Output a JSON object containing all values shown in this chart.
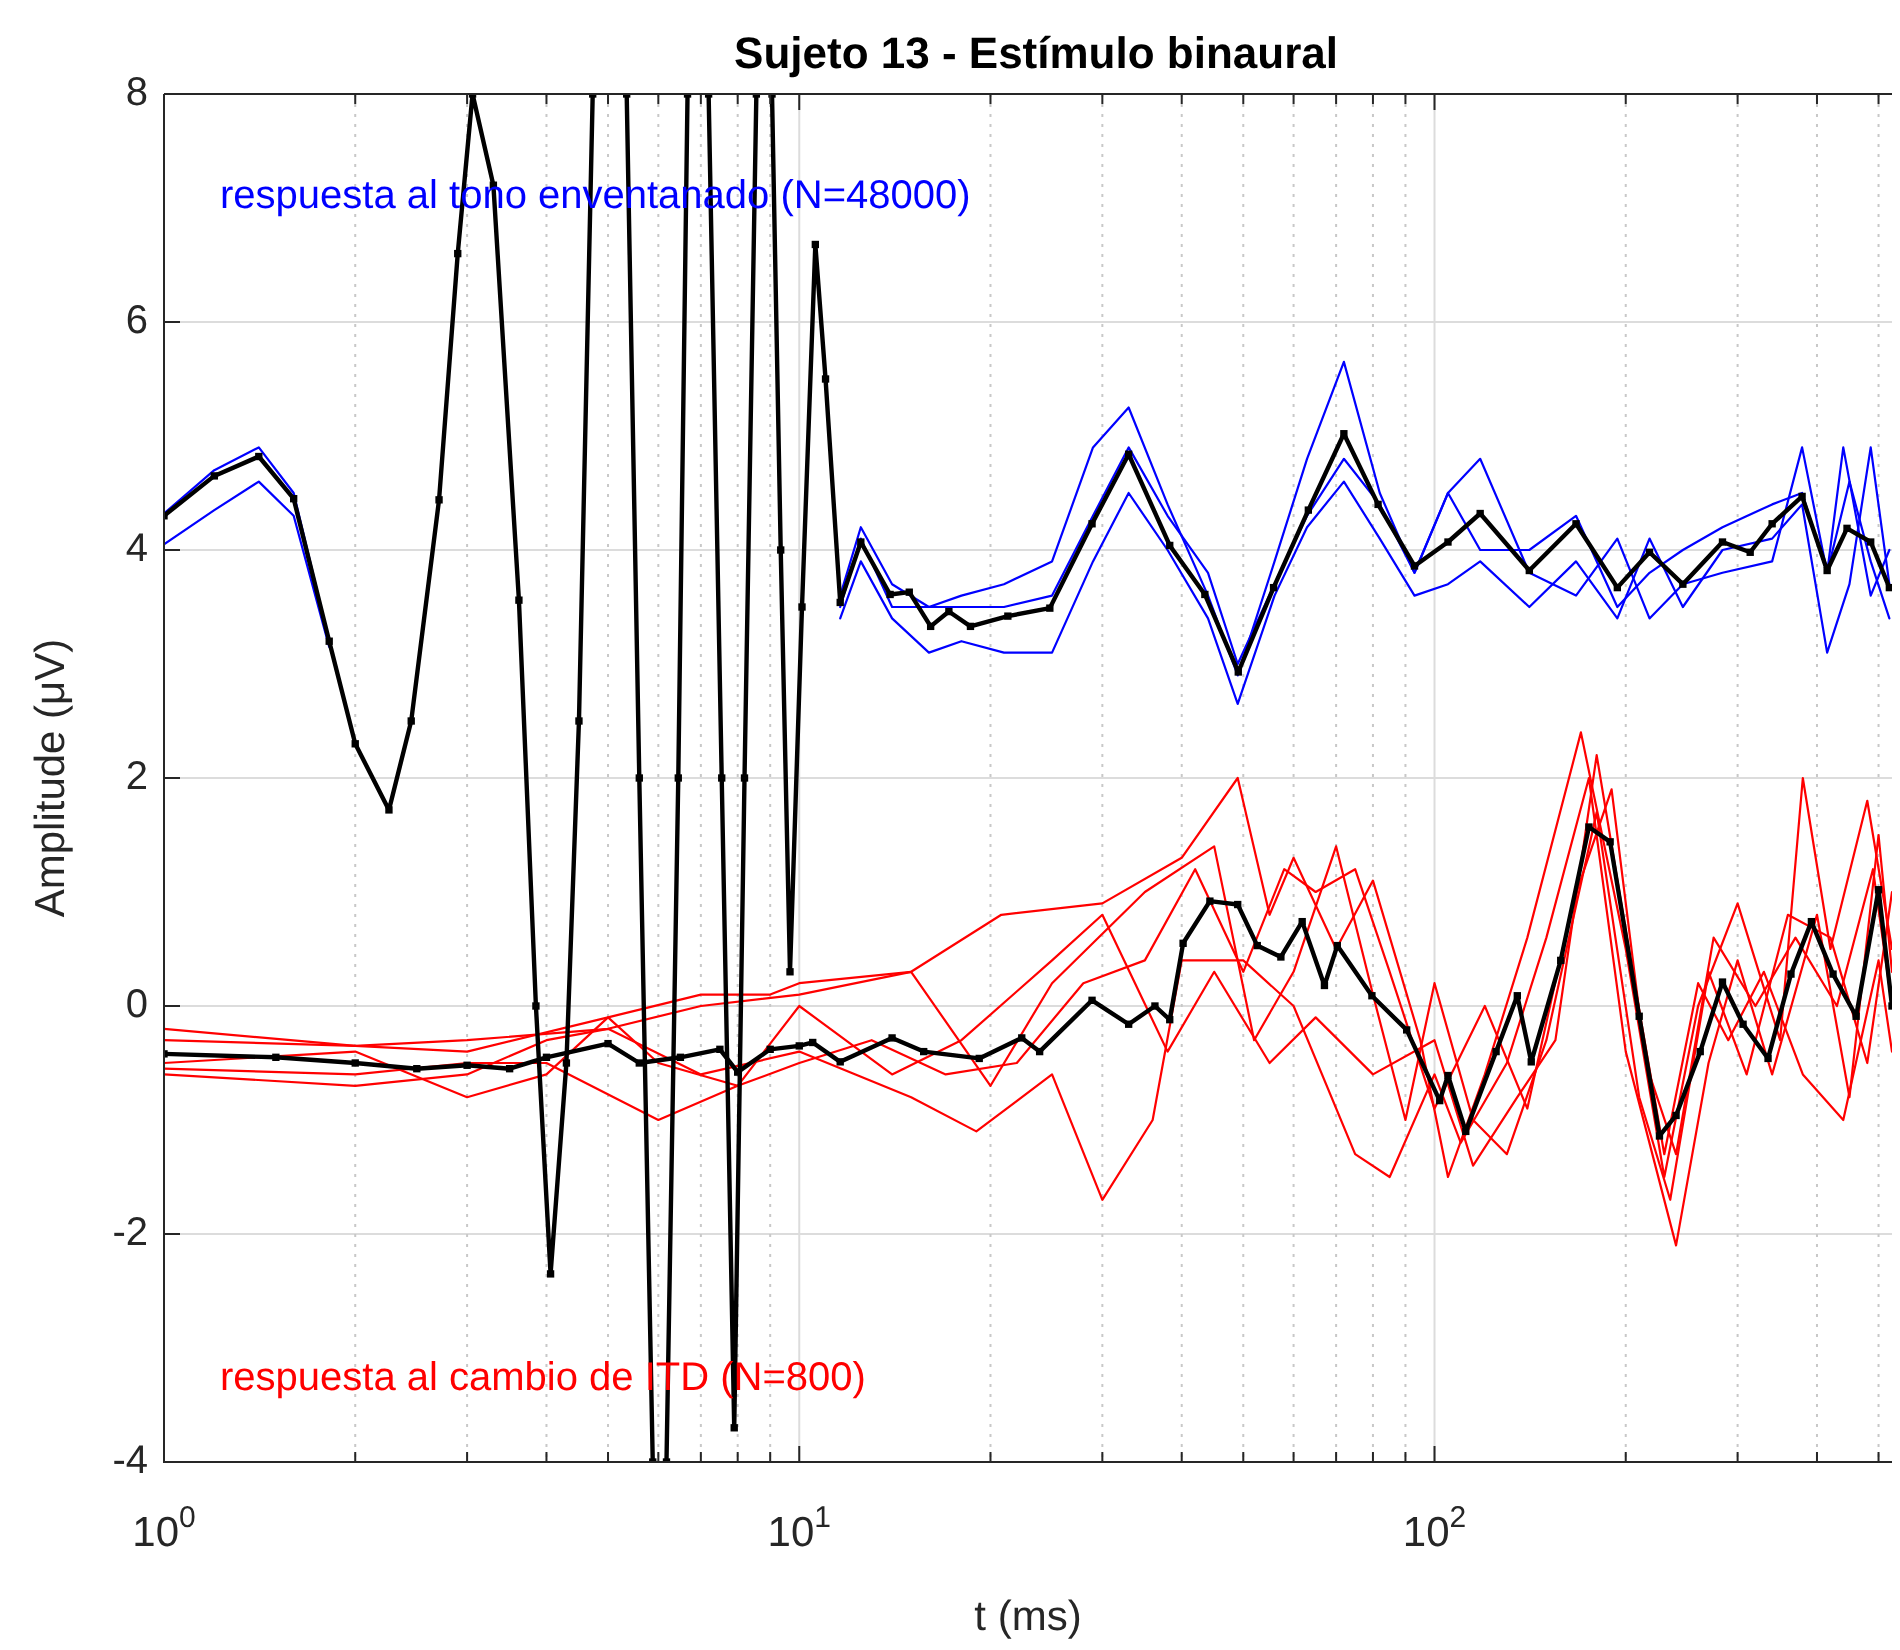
{
  "chart_data": {
    "type": "line",
    "title": "Sujeto 13 - Estímulo binaural",
    "xlabel": "t (ms)",
    "ylabel": "Amplitude (μV)",
    "log": "x",
    "grid": true,
    "xlim": [
      1,
      525
    ],
    "ylim": [
      -4,
      8
    ],
    "xticks": [
      {
        "value": 1,
        "label": "10$^{0}$"
      },
      {
        "value": 2,
        "label": null
      },
      {
        "value": 3,
        "label": null
      },
      {
        "value": 4,
        "label": null
      },
      {
        "value": 5,
        "label": null
      },
      {
        "value": 6,
        "label": null
      },
      {
        "value": 7,
        "label": null
      },
      {
        "value": 8,
        "label": null
      },
      {
        "value": 9,
        "label": null
      },
      {
        "value": 10,
        "label": "10$^{1}$"
      },
      {
        "value": 20,
        "label": null
      },
      {
        "value": 30,
        "label": null
      },
      {
        "value": 40,
        "label": null
      },
      {
        "value": 50,
        "label": null
      },
      {
        "value": 60,
        "label": null
      },
      {
        "value": 70,
        "label": null
      },
      {
        "value": 80,
        "label": null
      },
      {
        "value": 90,
        "label": null
      },
      {
        "value": 100,
        "label": "10$^{2}$"
      },
      {
        "value": 200,
        "label": null
      },
      {
        "value": 300,
        "label": null
      },
      {
        "value": 400,
        "label": null
      },
      {
        "value": 500,
        "label": null
      }
    ],
    "yticks": [
      -4,
      -2,
      0,
      2,
      4,
      6,
      8
    ],
    "series": [
      {
        "name": "respuesta al tono enventanado (N=48000)",
        "color": "#0000ff",
        "x": [
          1,
          1.2,
          1.41,
          1.6,
          1.82,
          2.0,
          11.6,
          12.5,
          14,
          16,
          18,
          21,
          25,
          29,
          33,
          38,
          44,
          49,
          56,
          63,
          72,
          82,
          93,
          105,
          118,
          141,
          167,
          194,
          218,
          246,
          284,
          340,
          379,
          415,
          440,
          486,
          520
        ],
        "values": [
          4.32,
          4.7,
          4.9,
          4.5,
          3.2,
          null,
          3.6,
          4.2,
          3.7,
          3.5,
          3.6,
          3.7,
          3.9,
          4.9,
          5.25,
          4.4,
          3.6,
          2.9,
          3.9,
          4.8,
          5.65,
          4.5,
          3.8,
          4.5,
          4.8,
          3.8,
          3.6,
          4.1,
          3.4,
          3.7,
          3.8,
          3.9,
          4.9,
          3.8,
          4.9,
          3.6,
          4
        ]
      },
      {
        "color": "#0000ff",
        "x": [
          1,
          1.2,
          1.41,
          1.6,
          1.82,
          2.0,
          11.6,
          12.5,
          14,
          16,
          18,
          21,
          25,
          29,
          33,
          38,
          44,
          49,
          56,
          63,
          72,
          82,
          93,
          105,
          118,
          141,
          167,
          194,
          218,
          246,
          284,
          340,
          379,
          415,
          450,
          486,
          520
        ],
        "values": [
          4.05,
          4.35,
          4.6,
          4.3,
          3.15,
          null,
          3.4,
          3.9,
          3.4,
          3.1,
          3.2,
          3.1,
          3.1,
          3.9,
          4.5,
          4.0,
          3.4,
          2.65,
          3.6,
          4.2,
          4.6,
          4.1,
          3.6,
          3.7,
          3.9,
          3.5,
          3.9,
          3.4,
          4.1,
          3.5,
          4.0,
          4.1,
          4.4,
          3.1,
          3.7,
          4.9,
          3.7
        ]
      },
      {
        "color": "#0000ff",
        "x": [
          11.6,
          12.5,
          14,
          16,
          18,
          21,
          25,
          29,
          33,
          38,
          44,
          49,
          56,
          63,
          72,
          82,
          93,
          105,
          118,
          141,
          167,
          194,
          218,
          246,
          284,
          340,
          379,
          415,
          450,
          486,
          520
        ],
        "values": [
          3.5,
          4.1,
          3.5,
          3.5,
          3.5,
          3.5,
          3.6,
          4.3,
          4.9,
          4.3,
          3.8,
          3.0,
          3.7,
          4.3,
          4.8,
          4.4,
          3.8,
          4.5,
          4.0,
          4.0,
          4.3,
          3.5,
          3.8,
          4.0,
          4.2,
          4.4,
          4.5,
          3.8,
          4.6,
          3.9,
          3.4
        ]
      },
      {
        "name": "respuesta al cambio de ITD (N=800)",
        "color": "#ff0000",
        "x": [
          1,
          2,
          3,
          5,
          7,
          10,
          15,
          20.8,
          30,
          40,
          49,
          55,
          60,
          70,
          80,
          95,
          105,
          120,
          140,
          170,
          200,
          230,
          260,
          300,
          350,
          380,
          420,
          480,
          525
        ],
        "values": [
          -0.3,
          -0.35,
          -0.3,
          -0.2,
          0,
          0.1,
          0.3,
          0.8,
          0.9,
          1.3,
          2.0,
          0.8,
          1.3,
          0.5,
          1.1,
          -0.3,
          -1.5,
          -0.6,
          0.6,
          2.4,
          0.5,
          -1.5,
          0,
          0.9,
          -0.3,
          2.0,
          0.5,
          1.8,
          0.5
        ]
      },
      {
        "color": "#ff0000",
        "x": [
          1,
          2,
          3,
          4,
          5,
          7,
          10,
          15,
          19,
          25,
          30,
          36,
          40,
          50,
          60,
          75,
          85,
          100,
          110,
          130,
          150,
          175,
          200,
          240,
          270,
          300,
          340,
          400,
          450,
          500,
          525
        ],
        "values": [
          -0.6,
          -0.7,
          -0.6,
          -0.3,
          -0.2,
          -0.6,
          -0.4,
          -0.8,
          -1.1,
          -0.6,
          -1.7,
          -1.0,
          0.4,
          0.4,
          0,
          -1.3,
          -1.5,
          -0.6,
          -1.2,
          -0.5,
          0.6,
          2.0,
          -0.4,
          -2.1,
          -0.5,
          0.4,
          -0.6,
          0.8,
          -0.8,
          1.5,
          0.3
        ]
      },
      {
        "color": "#ff0000",
        "x": [
          1,
          2,
          3,
          5,
          7,
          9,
          10,
          15,
          20,
          25,
          35,
          45,
          52,
          60,
          70,
          80,
          90,
          100,
          115,
          130,
          150,
          180,
          210,
          235,
          270,
          310,
          360,
          420,
          480,
          525
        ],
        "values": [
          -0.2,
          -0.35,
          -0.4,
          -0.1,
          0.1,
          0.1,
          0.2,
          0.3,
          -0.7,
          0.2,
          1.0,
          1.4,
          -0.3,
          0.3,
          1.4,
          0.1,
          -1.0,
          0.2,
          -1.0,
          -1.3,
          -0.3,
          1.7,
          -0.8,
          -1.7,
          0.3,
          -0.6,
          0.8,
          0.6,
          -0.5,
          1.0
        ]
      },
      {
        "color": "#ff0000",
        "x": [
          1,
          2,
          3,
          4,
          5,
          6,
          8,
          10,
          13,
          17,
          22,
          28,
          35,
          42,
          50,
          58,
          65,
          75,
          85,
          100,
          120,
          140,
          165,
          190,
          215,
          240,
          275,
          320,
          370,
          430,
          490,
          525
        ],
        "values": [
          -0.5,
          -0.4,
          -0.8,
          -0.6,
          -0.1,
          -0.5,
          -0.7,
          -0.5,
          -0.3,
          -0.6,
          -0.5,
          0.2,
          0.4,
          1.2,
          0.3,
          1.2,
          1.0,
          1.2,
          0.3,
          -0.9,
          0,
          -0.9,
          0.9,
          1.9,
          -0.5,
          -1.3,
          0.6,
          0,
          0.6,
          0,
          1.2,
          0
        ]
      },
      {
        "color": "#ff0000",
        "x": [
          1,
          2,
          3,
          4,
          6,
          8,
          10,
          14,
          18,
          25,
          30,
          38,
          45,
          55,
          65,
          80,
          100,
          115,
          135,
          155,
          180,
          205,
          230,
          260,
          290,
          330,
          380,
          440,
          500,
          525
        ],
        "values": [
          -0.55,
          -0.6,
          -0.5,
          -0.5,
          -1.0,
          -0.7,
          0,
          -0.6,
          -0.3,
          0.4,
          0.8,
          -0.4,
          0.3,
          -0.5,
          -0.1,
          -0.6,
          -0.3,
          -1.4,
          -0.8,
          -0.3,
          2.2,
          0.3,
          -1.3,
          0.2,
          -0.3,
          0.3,
          -0.6,
          -1.0,
          0.4,
          -0.4
        ]
      },
      {
        "color": "#000000",
        "marker": "square",
        "x": [
          1,
          1.2,
          1.41,
          1.6,
          1.82,
          2.0,
          2.26,
          2.45,
          2.71,
          2.9,
          3.06,
          3.3,
          3.62,
          3.85,
          4.06,
          4.3,
          4.5,
          4.73,
          5.0,
          5.35,
          5.6,
          5.88,
          6.0,
          6.18,
          6.45,
          6.67,
          6.9,
          7.2,
          7.55,
          7.9,
          8.2,
          8.56,
          8.8,
          9.06,
          9.35,
          9.67,
          10.1,
          10.6,
          11.0,
          11.6,
          12.5,
          13.9,
          14.9,
          16.1,
          17.2,
          18.6,
          21.3,
          24.8,
          28.9,
          33,
          38.3,
          43.5,
          49.1,
          55.8,
          63.3,
          72,
          81.5,
          93,
          105,
          118,
          141,
          167,
          194,
          218,
          246,
          284,
          314,
          340,
          379,
          415,
          446,
          486,
          520
        ],
        "values": [
          4.3,
          4.65,
          4.82,
          4.45,
          3.2,
          2.3,
          1.72,
          2.5,
          4.44,
          6.6,
          8,
          7.2,
          3.56,
          0,
          -2.35,
          -0.5,
          2.5,
          8,
          null,
          8,
          2,
          -4,
          null,
          -4,
          2,
          8,
          null,
          8,
          2,
          -3.7,
          2,
          8,
          null,
          8,
          4,
          0.3,
          3.5,
          6.68,
          5.5,
          3.54,
          4.07,
          3.61,
          3.63,
          3.33,
          3.46,
          3.33,
          3.42,
          3.49,
          4.23,
          4.84,
          4.04,
          3.61,
          2.93,
          3.67,
          4.35,
          5.02,
          4.4,
          3.86,
          4.07,
          4.32,
          3.82,
          4.23,
          3.67,
          3.98,
          3.7,
          4.07,
          3.98,
          4.23,
          4.47,
          3.82,
          4.19,
          4.07,
          3.67
        ]
      },
      {
        "color": "#000000",
        "marker": "square",
        "x": [
          1,
          1.5,
          2,
          2.5,
          3,
          3.5,
          4,
          5,
          5.6,
          6.5,
          7.5,
          8,
          9,
          10,
          10.5,
          11.6,
          14,
          15.7,
          19.2,
          22.4,
          23.9,
          28.9,
          33,
          36.3,
          38.3,
          40.2,
          44.3,
          49,
          52.6,
          57.3,
          61.9,
          67.1,
          70.3,
          79.7,
          90.4,
          101.9,
          105,
          112,
          125,
          135,
          142,
          158,
          175,
          189,
          210,
          226,
          240,
          262,
          284,
          306,
          335,
          364,
          392,
          424,
          461,
          500,
          525
        ],
        "values": [
          -0.42,
          -0.45,
          -0.5,
          -0.55,
          -0.52,
          -0.55,
          -0.45,
          -0.33,
          -0.5,
          -0.45,
          -0.38,
          -0.58,
          -0.38,
          -0.35,
          -0.32,
          -0.49,
          -0.28,
          -0.4,
          -0.46,
          -0.28,
          -0.4,
          0.05,
          -0.16,
          0,
          -0.12,
          0.55,
          0.92,
          0.89,
          0.53,
          0.43,
          0.74,
          0.18,
          0.53,
          0.09,
          -0.21,
          -0.83,
          -0.61,
          -1.1,
          -0.4,
          0.09,
          -0.49,
          0.4,
          1.57,
          1.44,
          -0.09,
          -1.14,
          -0.96,
          -0.4,
          0.21,
          -0.16,
          -0.46,
          0.28,
          0.74,
          0.28,
          -0.09,
          1.02,
          0
        ]
      }
    ]
  }
}
